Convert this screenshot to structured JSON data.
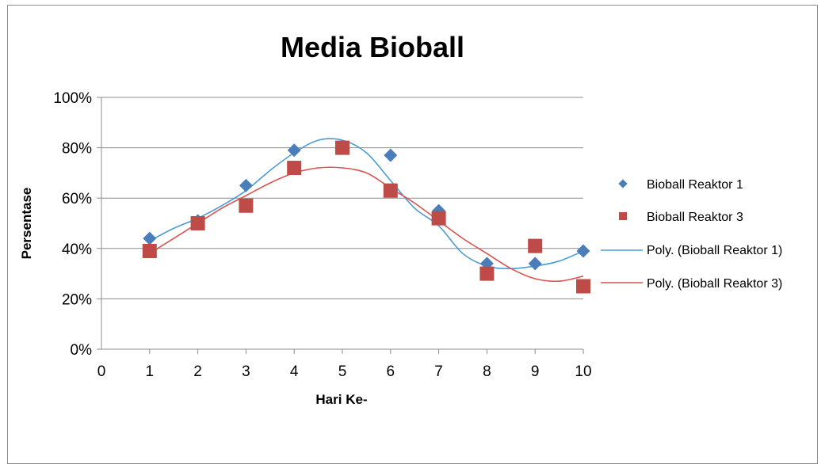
{
  "chart_data": {
    "type": "scatter",
    "title": "Media Bioball",
    "xlabel": "Hari Ke-",
    "ylabel": "Persentase",
    "xlim": [
      0,
      10
    ],
    "ylim": [
      0,
      100
    ],
    "x_ticks": [
      "0",
      "1",
      "2",
      "3",
      "4",
      "5",
      "6",
      "7",
      "8",
      "9",
      "10"
    ],
    "y_ticks": [
      "0%",
      "20%",
      "40%",
      "60%",
      "80%",
      "100%"
    ],
    "grid": true,
    "legend_position": "right",
    "series": [
      {
        "name": "Bioball  Reaktor 1",
        "marker": "diamond",
        "color": "#4a7ebb",
        "x": [
          1,
          2,
          3,
          4,
          5,
          6,
          7,
          8,
          9,
          10
        ],
        "y": [
          44,
          51,
          65,
          79,
          80,
          77,
          55,
          34,
          34,
          39
        ]
      },
      {
        "name": "Bioball  Reaktor 3",
        "marker": "square",
        "color": "#be4b48",
        "x": [
          1,
          2,
          3,
          4,
          5,
          6,
          7,
          8,
          9,
          10
        ],
        "y": [
          39,
          50,
          57,
          72,
          80,
          63,
          52,
          30,
          41,
          25
        ]
      }
    ],
    "trendlines": [
      {
        "name": "Poly. (Bioball  Reaktor 1)",
        "type": "polynomial",
        "color": "#4a9bd5",
        "x": [
          1,
          1.5,
          2,
          2.5,
          3,
          3.5,
          4,
          4.5,
          5,
          5.5,
          6,
          6.5,
          7,
          7.5,
          8,
          8.5,
          9,
          9.5,
          10
        ],
        "y": [
          43,
          48,
          52,
          57,
          63,
          71,
          78,
          83,
          83,
          78,
          67,
          56,
          49,
          38,
          33,
          32,
          33,
          35,
          39
        ]
      },
      {
        "name": "Poly. (Bioball  Reaktor 3)",
        "type": "polynomial",
        "color": "#d9534f",
        "x": [
          1,
          1.5,
          2,
          2.5,
          3,
          3.5,
          4,
          4.5,
          5,
          5.5,
          6,
          6.5,
          7,
          7.5,
          8,
          8.5,
          9,
          9.5,
          10
        ],
        "y": [
          38,
          44,
          50,
          56,
          61,
          66,
          70,
          72,
          72,
          70,
          64,
          58,
          51,
          44,
          38,
          32,
          28,
          27,
          29
        ]
      }
    ]
  }
}
